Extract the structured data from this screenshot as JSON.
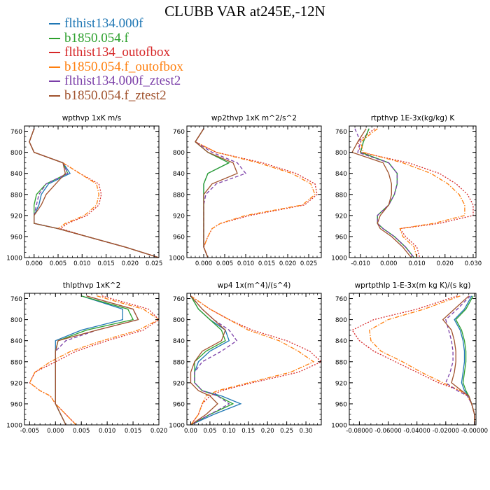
{
  "figure": {
    "title": "CLUBB VAR at245E,-12N",
    "legend": [
      {
        "label": "flthist134.000f",
        "color": "#1f77b4",
        "dash": "solid"
      },
      {
        "label": "b1850.054.f",
        "color": "#2ca02c",
        "dash": "solid"
      },
      {
        "label": "flthist134_outofbox",
        "color": "#d62728",
        "dash": "dotted"
      },
      {
        "label": "b1850.054.f_outofbox",
        "color": "#ff7f0e",
        "dash": "dashdot"
      },
      {
        "label": "flthist134.000f_ztest2",
        "color": "#7b3fa8",
        "dash": "dashed"
      },
      {
        "label": "b1850.054.f_ztest2",
        "color": "#a0522d",
        "dash": "solid"
      }
    ]
  },
  "chart_data": [
    {
      "type": "line",
      "title": "wpthvp 1xK m/s",
      "xlim": [
        -0.002,
        0.026
      ],
      "ylim": [
        1000,
        750
      ],
      "xticks": [
        0.0,
        0.005,
        0.01,
        0.015,
        0.02,
        0.025
      ],
      "xtick_labels": [
        "0.000",
        "0.005",
        "0.010",
        "0.015",
        "0.020",
        "0.025"
      ],
      "yticks": [
        760,
        800,
        840,
        880,
        920,
        960,
        1000
      ],
      "ytick_labels": [
        "760",
        "800",
        "840",
        "880",
        "920",
        "960",
        "1000"
      ],
      "y": [
        755,
        780,
        800,
        820,
        840,
        860,
        880,
        900,
        920,
        935,
        945,
        960,
        980,
        1000
      ],
      "series": [
        {
          "name": "flthist134.000f",
          "values": [
            0.0,
            -0.001,
            0.0,
            0.006,
            0.0075,
            0.003,
            0.0015,
            0.001,
            0.0,
            0.0,
            0.005,
            0.011,
            0.019,
            0.026
          ]
        },
        {
          "name": "b1850.054.f",
          "values": [
            0.0,
            -0.001,
            0.0,
            0.006,
            0.007,
            0.0025,
            0.0005,
            0.0,
            0.0,
            0.0,
            0.005,
            0.011,
            0.019,
            0.026
          ]
        },
        {
          "name": "flthist134_outofbox",
          "values": [
            0.0,
            -0.001,
            0.0,
            0.006,
            0.0095,
            0.0135,
            0.014,
            0.0135,
            0.011,
            0.007,
            0.0055,
            0.011,
            0.019,
            0.026
          ]
        },
        {
          "name": "b1850.054.f_outofbox",
          "values": [
            0.0,
            -0.001,
            0.0,
            0.006,
            0.0095,
            0.013,
            0.0135,
            0.013,
            0.0105,
            0.0065,
            0.005,
            0.011,
            0.019,
            0.026
          ]
        },
        {
          "name": "flthist134.000f_ztest2",
          "values": [
            0.0,
            -0.001,
            0.0,
            0.006,
            0.007,
            0.0025,
            0.001,
            0.0005,
            0.0,
            0.0,
            0.005,
            0.011,
            0.019,
            0.026
          ]
        },
        {
          "name": "b1850.054.f_ztest2",
          "values": [
            0.0,
            -0.001,
            0.0,
            0.006,
            0.0065,
            0.0045,
            0.0025,
            0.0015,
            0.0,
            0.0,
            0.005,
            0.011,
            0.019,
            0.026
          ]
        }
      ]
    },
    {
      "type": "line",
      "title": "wp2thvp 1xK m^2/s^2",
      "xlim": [
        -0.004,
        0.028
      ],
      "ylim": [
        1000,
        750
      ],
      "xticks": [
        0.0,
        0.005,
        0.01,
        0.015,
        0.02,
        0.025
      ],
      "xtick_labels": [
        "0.000",
        "0.005",
        "0.010",
        "0.015",
        "0.020",
        "0.025"
      ],
      "yticks": [
        760,
        800,
        840,
        880,
        920,
        960,
        1000
      ],
      "ytick_labels": [
        "760",
        "800",
        "840",
        "880",
        "920",
        "960",
        "1000"
      ],
      "y": [
        755,
        780,
        800,
        820,
        840,
        860,
        880,
        900,
        920,
        935,
        945,
        960,
        980,
        1000
      ],
      "series": [
        {
          "name": "flthist134.000f",
          "values": [
            0.0,
            -0.002,
            0.001,
            0.006,
            0.001,
            0.0,
            0.0,
            0.0,
            0.0,
            0.0,
            0.0,
            0.0,
            0.0,
            0.001
          ]
        },
        {
          "name": "b1850.054.f",
          "values": [
            0.0,
            -0.002,
            0.001,
            0.006,
            0.001,
            0.0,
            0.0,
            0.0,
            0.0,
            0.0,
            0.0,
            0.0,
            0.0,
            0.001
          ]
        },
        {
          "name": "flthist134_outofbox",
          "values": [
            0.0,
            -0.002,
            0.003,
            0.014,
            0.022,
            0.0265,
            0.027,
            0.024,
            0.011,
            0.004,
            0.002,
            0.001,
            0.0,
            0.001
          ]
        },
        {
          "name": "b1850.054.f_outofbox",
          "values": [
            0.0,
            -0.002,
            0.003,
            0.013,
            0.021,
            0.0255,
            0.0265,
            0.0235,
            0.01,
            0.004,
            0.002,
            0.001,
            0.0,
            0.001
          ]
        },
        {
          "name": "flthist134.000f_ztest2",
          "values": [
            0.0,
            -0.002,
            0.002,
            0.008,
            0.01,
            0.003,
            0.0005,
            0.0,
            0.0,
            0.0,
            0.0,
            0.0,
            0.0,
            0.001
          ]
        },
        {
          "name": "b1850.054.f_ztest2",
          "values": [
            0.0,
            -0.002,
            0.001,
            0.007,
            0.008,
            0.002,
            0.0,
            0.0,
            0.0,
            0.0,
            0.0,
            0.0,
            0.0,
            0.001
          ]
        }
      ]
    },
    {
      "type": "line",
      "title": "rtpthvp 1E-3x(kg/kg) K",
      "xlim": [
        -0.014,
        0.031
      ],
      "ylim": [
        1000,
        750
      ],
      "xticks": [
        -0.01,
        0.0,
        0.01,
        0.02,
        0.03
      ],
      "xtick_labels": [
        "-0.010",
        "0.000",
        "0.010",
        "0.020",
        "0.030"
      ],
      "yticks": [
        760,
        800,
        840,
        880,
        920,
        960,
        1000
      ],
      "ytick_labels": [
        "760",
        "800",
        "840",
        "880",
        "920",
        "960",
        "1000"
      ],
      "y": [
        755,
        780,
        800,
        820,
        840,
        860,
        880,
        900,
        920,
        935,
        945,
        960,
        980,
        1000
      ],
      "series": [
        {
          "name": "flthist134.000f",
          "values": [
            -0.007,
            -0.009,
            -0.01,
            0.0,
            0.003,
            0.003,
            0.002,
            0.0,
            -0.004,
            -0.004,
            -0.002,
            0.002,
            0.006,
            0.009
          ]
        },
        {
          "name": "b1850.054.f",
          "values": [
            -0.007,
            -0.009,
            -0.01,
            0.0,
            0.003,
            0.003,
            0.002,
            0.0,
            -0.004,
            -0.004,
            -0.002,
            0.002,
            0.006,
            0.009
          ]
        },
        {
          "name": "flthist134_outofbox",
          "values": [
            -0.005,
            -0.011,
            -0.01,
            0.007,
            0.018,
            0.024,
            0.028,
            0.03,
            0.03,
            0.018,
            0.004,
            0.006,
            0.01,
            0.011
          ]
        },
        {
          "name": "b1850.054.f_outofbox",
          "values": [
            -0.004,
            -0.01,
            -0.009,
            0.005,
            0.015,
            0.021,
            0.025,
            0.027,
            0.027,
            0.016,
            0.004,
            0.005,
            0.009,
            0.01
          ]
        },
        {
          "name": "flthist134.000f_ztest2",
          "values": [
            -0.012,
            -0.01,
            -0.011,
            0.0,
            0.003,
            0.003,
            0.002,
            0.0,
            -0.004,
            -0.004,
            -0.002,
            0.002,
            0.006,
            0.009
          ]
        },
        {
          "name": "b1850.054.f_ztest2",
          "values": [
            -0.008,
            -0.011,
            -0.013,
            -0.002,
            0.0,
            0.001,
            0.001,
            0.0,
            -0.003,
            -0.004,
            -0.003,
            0.001,
            0.005,
            0.008
          ]
        }
      ]
    },
    {
      "type": "line",
      "title": "thlpthvp 1xK^2",
      "xlim": [
        -0.006,
        0.02
      ],
      "ylim": [
        1000,
        750
      ],
      "xticks": [
        -0.005,
        0.0,
        0.005,
        0.01,
        0.015,
        0.02
      ],
      "xtick_labels": [
        "-0.005",
        "0.000",
        "0.005",
        "0.010",
        "0.015",
        "0.020"
      ],
      "yticks": [
        760,
        800,
        840,
        880,
        920,
        960,
        1000
      ],
      "ytick_labels": [
        "760",
        "800",
        "840",
        "880",
        "920",
        "960",
        "1000"
      ],
      "y": [
        755,
        780,
        800,
        820,
        840,
        860,
        880,
        900,
        920,
        935,
        945,
        960,
        980,
        1000
      ],
      "series": [
        {
          "name": "flthist134.000f",
          "values": [
            0.005,
            0.013,
            0.013,
            0.005,
            0.0,
            0.0,
            0.0,
            0.0,
            0.0,
            0.0,
            0.0,
            0.0,
            0.001,
            0.002
          ]
        },
        {
          "name": "b1850.054.f",
          "values": [
            0.005,
            0.014,
            0.015,
            0.006,
            0.0005,
            0.0,
            0.0,
            0.0,
            0.0,
            0.0,
            0.0,
            0.0,
            0.001,
            0.002
          ]
        },
        {
          "name": "flthist134_outofbox",
          "values": [
            0.009,
            0.018,
            0.02,
            0.017,
            0.01,
            0.004,
            0.0,
            -0.004,
            -0.005,
            -0.003,
            -0.001,
            0.0,
            0.002,
            0.004
          ]
        },
        {
          "name": "b1850.054.f_outofbox",
          "values": [
            0.008,
            0.017,
            0.02,
            0.016,
            0.009,
            0.003,
            -0.001,
            -0.004,
            -0.005,
            -0.003,
            -0.001,
            0.0,
            0.002,
            0.004
          ]
        },
        {
          "name": "flthist134.000f_ztest2",
          "values": [
            0.006,
            0.015,
            0.016,
            0.008,
            0.002,
            0.0,
            0.0,
            0.0,
            0.0,
            0.0,
            0.0,
            0.0,
            0.001,
            0.002
          ]
        },
        {
          "name": "b1850.054.f_ztest2",
          "values": [
            0.006,
            0.015,
            0.016,
            0.008,
            0.0005,
            0.0,
            0.0,
            0.0,
            0.0,
            0.0,
            0.0,
            0.0,
            0.001,
            0.002
          ]
        }
      ]
    },
    {
      "type": "line",
      "title": "wp4 1x(m^4)/(s^4)",
      "xlim": [
        -0.01,
        0.34
      ],
      "ylim": [
        1000,
        750
      ],
      "xticks": [
        0.0,
        0.05,
        0.1,
        0.15,
        0.2,
        0.25,
        0.3
      ],
      "xtick_labels": [
        "0.00",
        "0.05",
        "0.10",
        "0.15",
        "0.20",
        "0.25",
        "0.30"
      ],
      "yticks": [
        760,
        800,
        840,
        880,
        920,
        960,
        1000
      ],
      "ytick_labels": [
        "760",
        "800",
        "840",
        "880",
        "920",
        "960",
        "1000"
      ],
      "y": [
        755,
        780,
        800,
        820,
        840,
        860,
        880,
        900,
        920,
        935,
        945,
        960,
        980,
        1000
      ],
      "series": [
        {
          "name": "flthist134.000f",
          "values": [
            0.0,
            0.02,
            0.05,
            0.09,
            0.1,
            0.05,
            0.02,
            0.01,
            0.01,
            0.03,
            0.08,
            0.13,
            0.06,
            0.0
          ]
        },
        {
          "name": "b1850.054.f",
          "values": [
            0.0,
            0.02,
            0.05,
            0.08,
            0.09,
            0.04,
            0.01,
            0.01,
            0.01,
            0.03,
            0.07,
            0.11,
            0.05,
            0.0
          ]
        },
        {
          "name": "flthist134_outofbox",
          "values": [
            0.0,
            0.05,
            0.1,
            0.16,
            0.25,
            0.31,
            0.34,
            0.28,
            0.16,
            0.08,
            0.05,
            0.03,
            0.02,
            0.0
          ]
        },
        {
          "name": "b1850.054.f_outofbox",
          "values": [
            0.0,
            0.05,
            0.1,
            0.15,
            0.23,
            0.28,
            0.32,
            0.26,
            0.15,
            0.07,
            0.04,
            0.03,
            0.02,
            0.0
          ]
        },
        {
          "name": "flthist134.000f_ztest2",
          "values": [
            0.0,
            0.03,
            0.06,
            0.1,
            0.12,
            0.08,
            0.03,
            0.01,
            0.01,
            0.03,
            0.07,
            0.1,
            0.05,
            0.0
          ]
        },
        {
          "name": "b1850.054.f_ztest2",
          "values": [
            0.0,
            0.03,
            0.06,
            0.09,
            0.08,
            0.03,
            0.01,
            0.0,
            0.0,
            0.02,
            0.05,
            0.07,
            0.04,
            0.0
          ]
        }
      ]
    },
    {
      "type": "line",
      "title": "wprtpthlp 1-E-3x(m kg K)/(s kg)",
      "xlim": [
        -0.087,
        0.001
      ],
      "ylim": [
        1000,
        750
      ],
      "xticks": [
        -0.08,
        -0.06,
        -0.04,
        -0.02,
        0.0
      ],
      "xtick_labels": [
        "-0.08000",
        "-0.06000",
        "-0.04000",
        "-0.02000",
        "-0.00000"
      ],
      "yticks": [
        760,
        800,
        840,
        880,
        920,
        960,
        1000
      ],
      "ytick_labels": [
        "760",
        "800",
        "840",
        "880",
        "920",
        "960",
        "1000"
      ],
      "y": [
        755,
        780,
        800,
        820,
        840,
        860,
        880,
        900,
        920,
        935,
        945,
        960,
        980,
        1000
      ],
      "series": [
        {
          "name": "flthist134.000f",
          "values": [
            -0.002,
            -0.007,
            -0.014,
            -0.01,
            -0.008,
            -0.007,
            -0.007,
            -0.008,
            -0.009,
            -0.007,
            -0.004,
            -0.002,
            0.0,
            0.0
          ]
        },
        {
          "name": "b1850.054.f",
          "values": [
            -0.001,
            -0.006,
            -0.013,
            -0.009,
            -0.007,
            -0.006,
            -0.006,
            -0.007,
            -0.008,
            -0.006,
            -0.004,
            -0.002,
            0.0,
            0.0
          ]
        },
        {
          "name": "flthist134_outofbox",
          "values": [
            -0.012,
            -0.04,
            -0.07,
            -0.085,
            -0.08,
            -0.07,
            -0.055,
            -0.04,
            -0.025,
            -0.01,
            -0.005,
            -0.002,
            0.0,
            0.0
          ]
        },
        {
          "name": "b1850.054.f_outofbox",
          "values": [
            -0.01,
            -0.035,
            -0.06,
            -0.073,
            -0.072,
            -0.065,
            -0.05,
            -0.037,
            -0.022,
            -0.01,
            -0.005,
            -0.002,
            0.0,
            0.0
          ]
        },
        {
          "name": "flthist134.000f_ztest2",
          "values": [
            -0.003,
            -0.012,
            -0.02,
            -0.018,
            -0.016,
            -0.015,
            -0.015,
            -0.017,
            -0.02,
            -0.012,
            -0.005,
            -0.002,
            0.0,
            0.0
          ]
        },
        {
          "name": "b1850.054.f_ztest2",
          "values": [
            -0.004,
            -0.014,
            -0.022,
            -0.016,
            -0.014,
            -0.013,
            -0.013,
            -0.014,
            -0.016,
            -0.009,
            -0.004,
            -0.002,
            0.0,
            0.0
          ]
        }
      ]
    }
  ]
}
